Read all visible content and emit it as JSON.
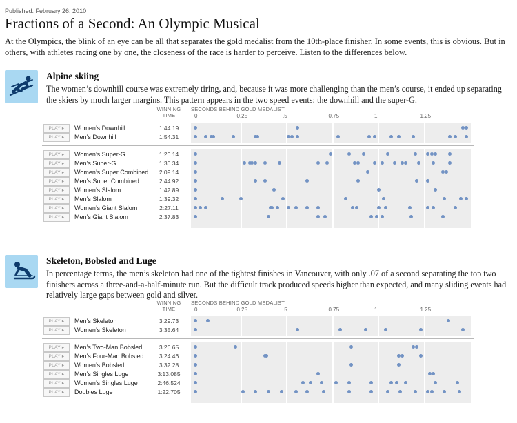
{
  "published": "Published: February 26, 2010",
  "title": "Fractions of a Second: An Olympic Musical",
  "intro": "At the Olympics, the blink of an eye can be all that separates the gold medalist from the 10th-place finisher. In some events, this is obvious. But in others, with athletes racing one by one, the closeness of the race is harder to perceive. Listen to the differences below.",
  "play_label": "PLAY ▸",
  "headers": {
    "winning": "WINNING",
    "time": "TIME",
    "seconds": "SECONDS BEHIND GOLD MEDALIST"
  },
  "ticks": [
    "0",
    "0.25",
    ".5",
    "0.75",
    "1",
    "1.25"
  ],
  "colors": {
    "dot": "#7393c4",
    "track": "#ededed",
    "icon_bg": "#a9d8f2",
    "icon_fg": "#0d3a6b"
  },
  "sections": [
    {
      "title": "Alpine skiing",
      "description": "The women’s downhill course was extremely tiring, and, because it was more challenging than the men’s course, it ended up separating the skiers by much larger margins. This pattern appears in the two speed events: the downhill and the super-G.",
      "icon": "skier-icon"
    },
    {
      "title": "Skeleton, Bobsled and Luge",
      "description": "In percentage terms, the men’s skeleton had one of the tightest finishes in Vancouver, with only .07 of a second separating the top two finishers across a three-and-a-half-minute run. But the difficult track produced speeds higher than expected, and many sliding events had relatively large gaps between gold and silver.",
      "icon": "sled-icon"
    }
  ],
  "chart_data": [
    {
      "type": "scatter",
      "title": "Alpine skiing",
      "xlabel": "SECONDS BEHIND GOLD MEDALIST",
      "xlim": [
        0,
        1.5
      ],
      "xticks": [
        0,
        0.25,
        0.5,
        0.75,
        1,
        1.25
      ],
      "groups": [
        [
          {
            "event": "Women’s Downhill",
            "winning_time": "1:44.19",
            "gaps": [
              0,
              0.56,
              1.46,
              1.48
            ]
          },
          {
            "event": "Men’s Downhill",
            "winning_time": "1:54.31",
            "gaps": [
              0,
              0.06,
              0.09,
              0.1,
              0.21,
              0.33,
              0.34,
              0.51,
              0.53,
              0.56,
              0.78,
              0.95,
              0.98,
              1.07,
              1.11,
              1.19,
              1.39,
              1.42,
              1.48
            ]
          }
        ],
        [
          {
            "event": "Women’s Super-G",
            "winning_time": "1:20.14",
            "gaps": [
              0,
              0.74,
              0.84,
              0.92,
              1.05,
              1.2,
              1.27,
              1.29,
              1.31,
              1.39
            ]
          },
          {
            "event": "Men’s Super-G",
            "winning_time": "1:30.34",
            "gaps": [
              0,
              0.27,
              0.3,
              0.31,
              0.33,
              0.38,
              0.46,
              0.67,
              0.72,
              0.87,
              0.89,
              0.98,
              1.02,
              1.09,
              1.13,
              1.15,
              1.22,
              1.3,
              1.39
            ]
          },
          {
            "event": "Women’s Super Combined",
            "winning_time": "2:09.14",
            "gaps": [
              0,
              0.94,
              1.35,
              1.37
            ]
          },
          {
            "event": "Men’s Super Combined",
            "winning_time": "2:44.92",
            "gaps": [
              0,
              0.33,
              0.38,
              0.61,
              0.89,
              1.21,
              1.27
            ]
          },
          {
            "event": "Women’s Slalom",
            "winning_time": "1:42.89",
            "gaps": [
              0,
              0.43,
              1.0,
              1.31
            ]
          },
          {
            "event": "Men’s Slalom",
            "winning_time": "1:39.32",
            "gaps": [
              0,
              0.15,
              0.25,
              0.48,
              0.82,
              1.03,
              1.36,
              1.45,
              1.48
            ]
          },
          {
            "event": "Women’s Giant Slalom",
            "winning_time": "2:27.11",
            "gaps": [
              0,
              0.03,
              0.06,
              0.41,
              0.42,
              0.45,
              0.51,
              0.55,
              0.61,
              0.67,
              0.86,
              0.88,
              1.0,
              1.04,
              1.17,
              1.27,
              1.3,
              1.42
            ]
          },
          {
            "event": "Men’s Giant Slalom",
            "winning_time": "2:37.83",
            "gaps": [
              0,
              0.4,
              0.67,
              0.71,
              0.96,
              0.99,
              1.02,
              1.18,
              1.35
            ]
          }
        ]
      ]
    },
    {
      "type": "scatter",
      "title": "Skeleton, Bobsled and Luge",
      "xlabel": "SECONDS BEHIND GOLD MEDALIST",
      "xlim": [
        0,
        1.5
      ],
      "xticks": [
        0,
        0.25,
        0.5,
        0.75,
        1,
        1.25
      ],
      "groups": [
        [
          {
            "event": "Men’s Skeleton",
            "winning_time": "3:29.73",
            "gaps": [
              0,
              0.07,
              1.38
            ]
          },
          {
            "event": "Women’s Skeleton",
            "winning_time": "3:35.64",
            "gaps": [
              0,
              0.56,
              0.79,
              0.93,
              1.04,
              1.23,
              1.46
            ]
          }
        ],
        [
          {
            "event": "Men’s Two-Man Bobsled",
            "winning_time": "3:26.65",
            "gaps": [
              0,
              0.22,
              0.85,
              1.19,
              1.21
            ]
          },
          {
            "event": "Men’s Four-Man Bobsled",
            "winning_time": "3:24.46",
            "gaps": [
              0,
              0.38,
              0.39,
              1.11,
              1.13,
              1.23
            ]
          },
          {
            "event": "Women’s Bobsled",
            "winning_time": "3:32.28",
            "gaps": [
              0,
              0.85,
              1.11
            ]
          },
          {
            "event": "Men’s Singles Luge",
            "winning_time": "3:13.085",
            "gaps": [
              0,
              0.67,
              1.28,
              1.3
            ]
          },
          {
            "event": "Women’s Singles Luge",
            "winning_time": "2:46.524",
            "gaps": [
              0,
              0.59,
              0.63,
              0.69,
              0.77,
              0.84,
              0.96,
              1.07,
              1.1,
              1.15,
              1.31,
              1.43
            ]
          },
          {
            "event": "Doubles Luge",
            "winning_time": "1:22.705",
            "gaps": [
              0,
              0.26,
              0.33,
              0.4,
              0.47,
              0.55,
              0.61,
              0.7,
              0.84,
              0.96,
              1.05,
              1.12,
              1.2,
              1.27,
              1.29,
              1.36,
              1.44
            ]
          }
        ]
      ]
    }
  ]
}
